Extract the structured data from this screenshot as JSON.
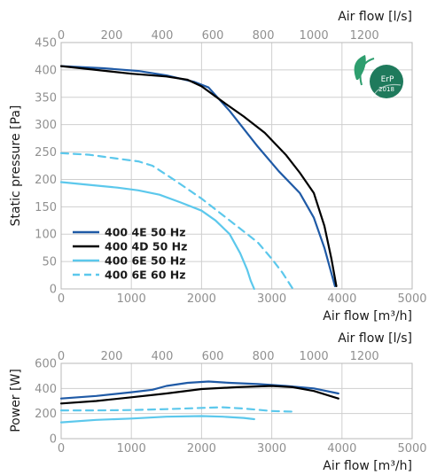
{
  "colors": {
    "4E50": "#1f5aa6",
    "4D50": "#000000",
    "6E50": "#5cc8ec",
    "6E60": "#5cc8ec",
    "erp_badge": "#1f7a5c"
  },
  "badge": {
    "label": "ErP",
    "year": "2018",
    "icon": "erp-leaf-badge-icon"
  },
  "chart_data": [
    {
      "type": "line",
      "ylabel": "Static pressure [Pa]",
      "xlabel": "Air flow [m³/h]",
      "xlabel_top": "Air flow [l/s]",
      "xlim": [
        0,
        5000
      ],
      "ylim": [
        0,
        450
      ],
      "xticks": [
        0,
        1000,
        2000,
        3000,
        4000,
        5000
      ],
      "yticks": [
        0,
        50,
        100,
        150,
        200,
        250,
        300,
        350,
        400,
        450
      ],
      "top_xlim": [
        0,
        1389
      ],
      "top_xticks": [
        0,
        200,
        400,
        600,
        800,
        1000,
        1200
      ],
      "grid": true,
      "legend": "bottom-left",
      "series": [
        {
          "key": "4E50",
          "name": "400 4E 50 Hz",
          "dash": false,
          "x": [
            0,
            600,
            1100,
            1500,
            1900,
            2100,
            2400,
            2800,
            3100,
            3400,
            3600,
            3750,
            3900
          ],
          "y": [
            407,
            403,
            398,
            390,
            378,
            368,
            325,
            260,
            215,
            175,
            130,
            75,
            5
          ]
        },
        {
          "key": "4D50",
          "name": "400 4D 50 Hz",
          "dash": false,
          "x": [
            0,
            500,
            1000,
            1500,
            1800,
            2000,
            2300,
            2600,
            2900,
            3200,
            3400,
            3600,
            3750,
            3850,
            3920
          ],
          "y": [
            407,
            400,
            393,
            388,
            382,
            370,
            342,
            315,
            285,
            245,
            212,
            175,
            115,
            55,
            5
          ]
        },
        {
          "key": "6E50",
          "name": "400 6E 50 Hz",
          "dash": false,
          "x": [
            0,
            400,
            800,
            1100,
            1400,
            1700,
            2000,
            2200,
            2400,
            2550,
            2650,
            2700,
            2750
          ],
          "y": [
            195,
            190,
            185,
            180,
            172,
            158,
            143,
            125,
            100,
            65,
            35,
            15,
            0
          ]
        },
        {
          "key": "6E60",
          "name": "400 6E 60 Hz",
          "dash": true,
          "x": [
            0,
            400,
            800,
            1100,
            1300,
            1600,
            2000,
            2300,
            2600,
            2800,
            3000,
            3150,
            3300
          ],
          "y": [
            248,
            245,
            238,
            233,
            225,
            200,
            165,
            135,
            105,
            85,
            55,
            30,
            0
          ]
        }
      ]
    },
    {
      "type": "line",
      "ylabel": "Power [W]",
      "xlabel": "Air flow [m³/h]",
      "xlabel_top": "Air flow [l/s]",
      "xlim": [
        0,
        5000
      ],
      "ylim": [
        0,
        600
      ],
      "xticks": [
        0,
        1000,
        2000,
        3000,
        4000,
        5000
      ],
      "yticks": [
        0,
        200,
        400,
        600
      ],
      "top_xlim": [
        0,
        1389
      ],
      "top_xticks": [
        0,
        200,
        400,
        600,
        800,
        1000,
        1200
      ],
      "grid": true,
      "series": [
        {
          "key": "4E50",
          "dash": false,
          "x": [
            0,
            500,
            1000,
            1300,
            1500,
            1800,
            2100,
            2400,
            2800,
            3200,
            3600,
            3950
          ],
          "y": [
            320,
            340,
            370,
            390,
            420,
            445,
            455,
            445,
            435,
            420,
            400,
            360
          ]
        },
        {
          "key": "4D50",
          "dash": false,
          "x": [
            0,
            500,
            1000,
            1500,
            2000,
            2500,
            3000,
            3300,
            3600,
            3950
          ],
          "y": [
            280,
            300,
            330,
            360,
            395,
            410,
            420,
            410,
            380,
            320
          ]
        },
        {
          "key": "6E50",
          "dash": false,
          "x": [
            0,
            500,
            1000,
            1500,
            2000,
            2300,
            2600,
            2750
          ],
          "y": [
            130,
            150,
            160,
            175,
            180,
            175,
            165,
            155
          ]
        },
        {
          "key": "6E60",
          "dash": true,
          "x": [
            0,
            500,
            1000,
            1500,
            2000,
            2300,
            2600,
            3000,
            3300
          ],
          "y": [
            225,
            225,
            228,
            235,
            245,
            250,
            240,
            220,
            215
          ]
        }
      ]
    }
  ]
}
